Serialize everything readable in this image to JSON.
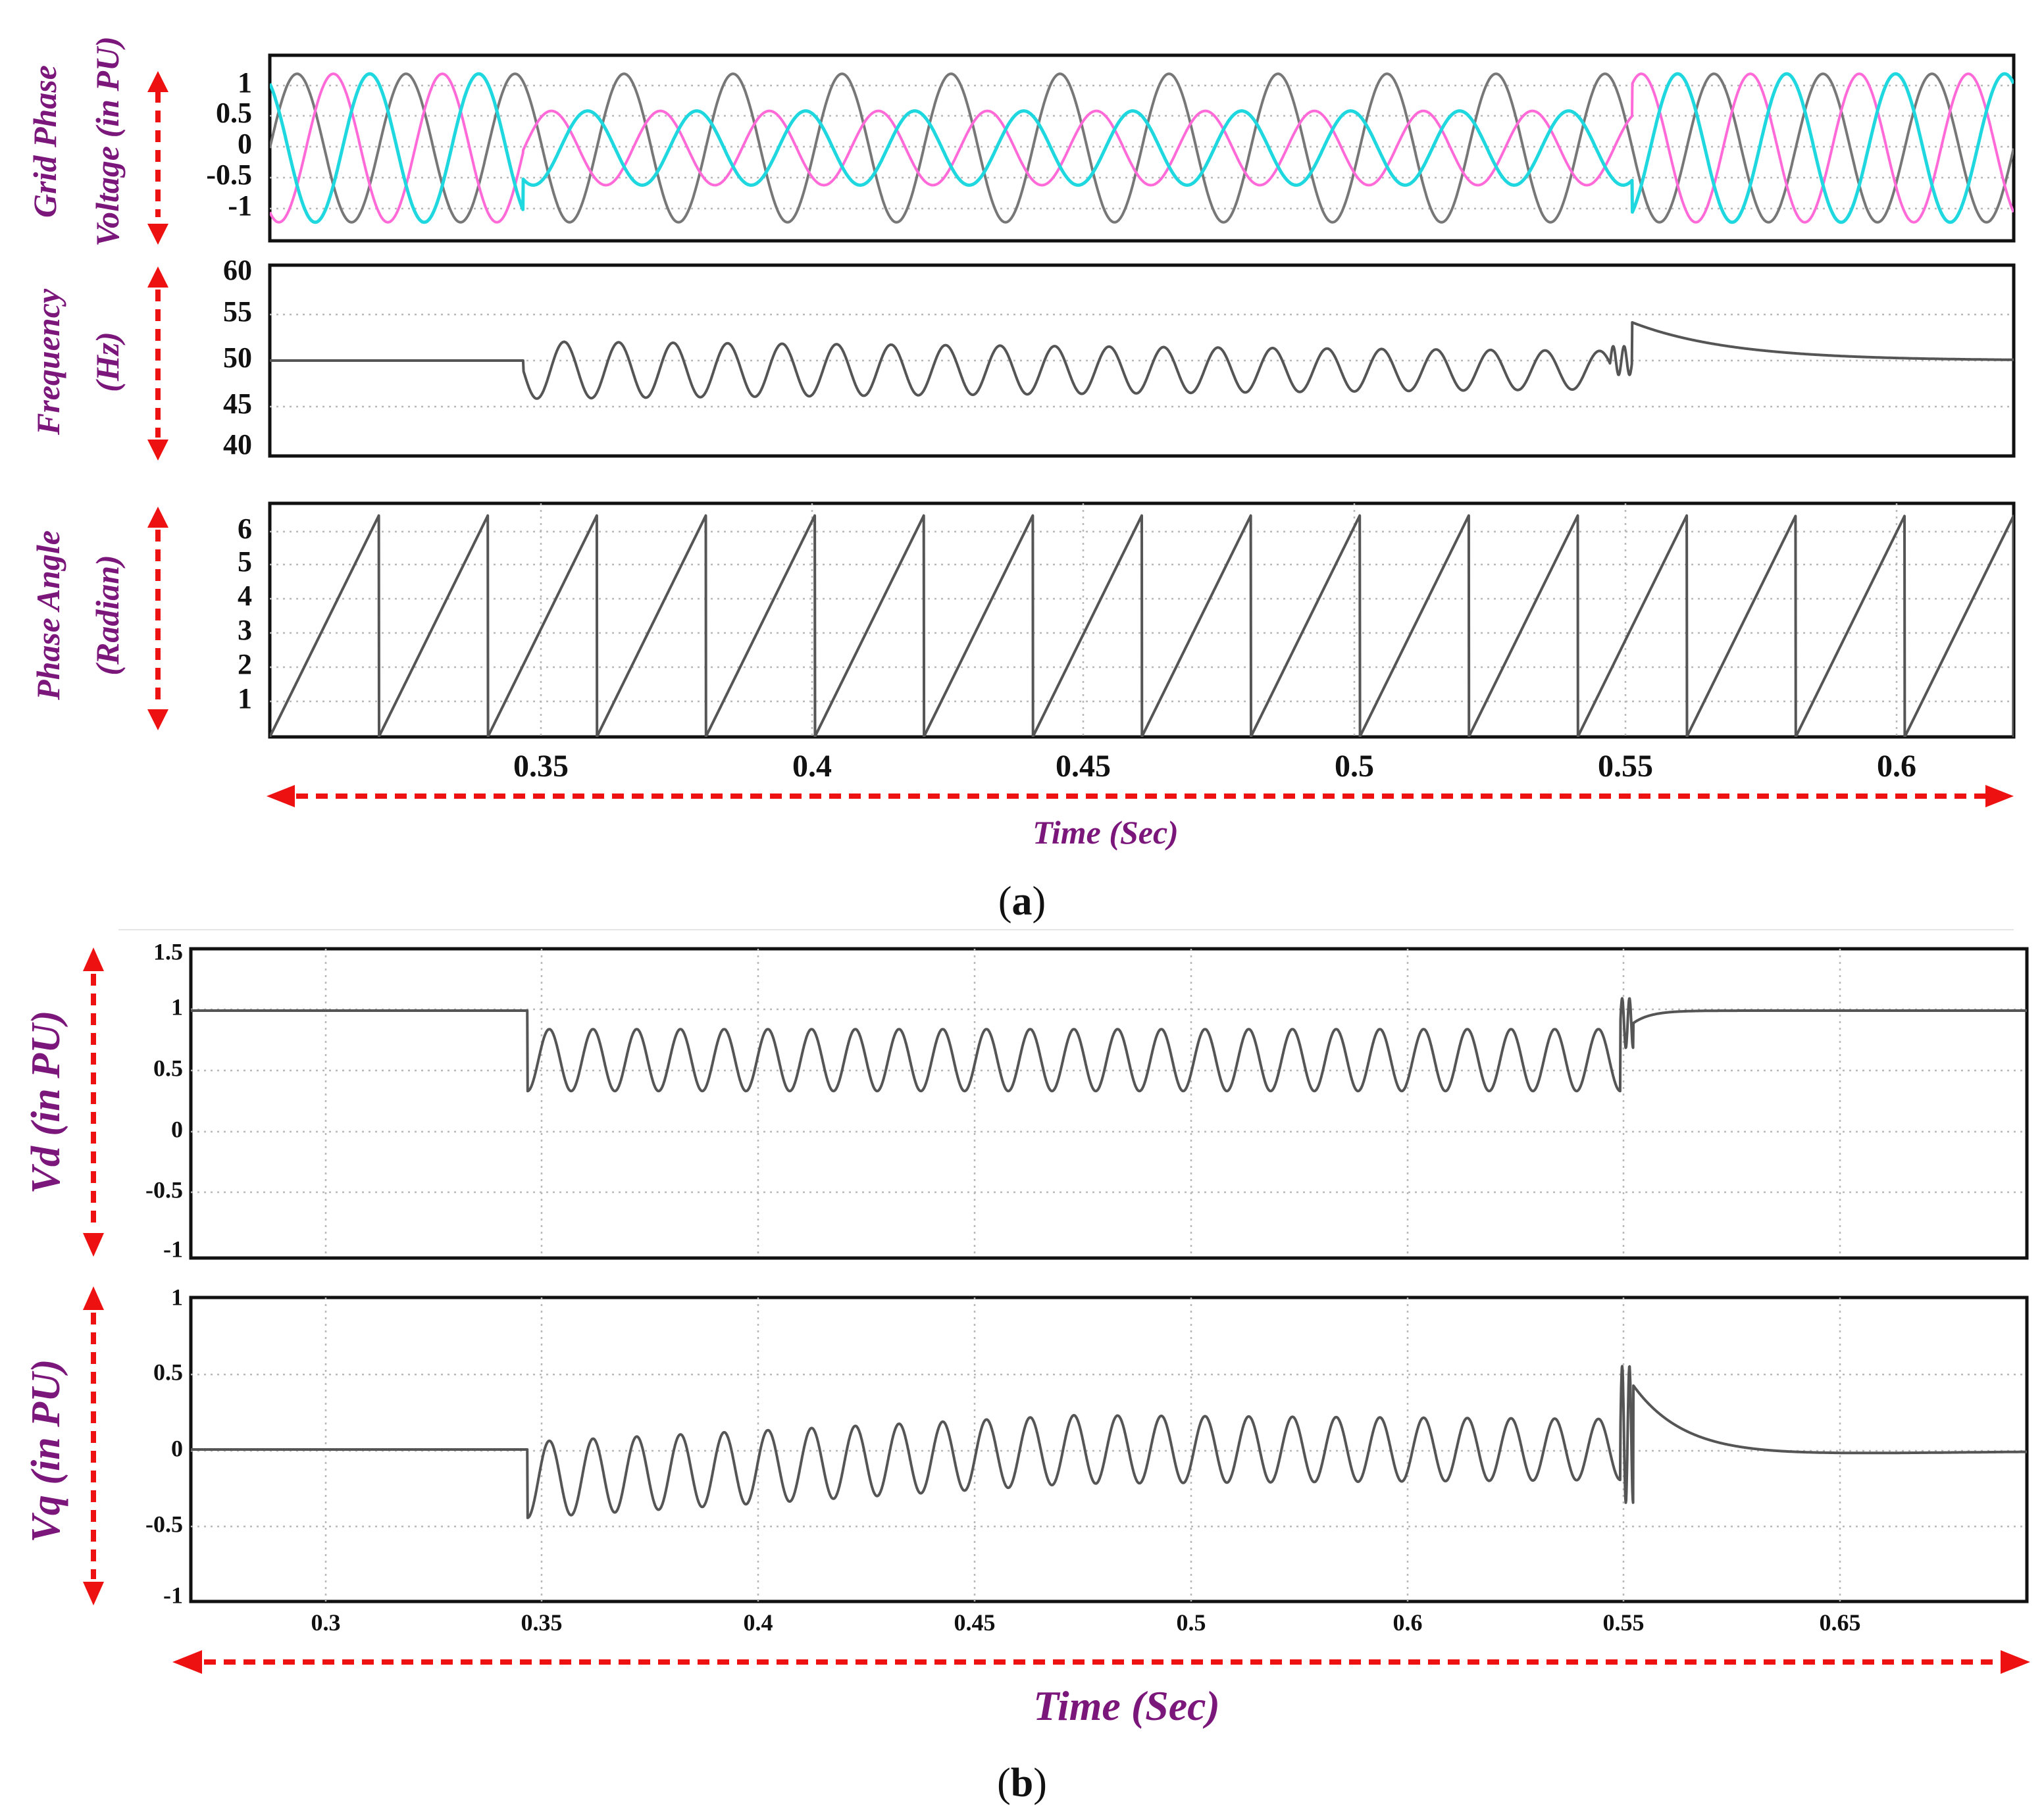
{
  "colors": {
    "phase_a": "#777777",
    "phase_b": "#ff6ad8",
    "phase_c": "#1fd8df",
    "trace": "#555555",
    "label_purple": "#7b177b",
    "arrow_red": "#ee1111"
  },
  "panel_a": {
    "caption_open": "(",
    "caption_letter": "a",
    "caption_close": ")",
    "x_label": "Time (Sec)",
    "x_ticks": [
      "0.35",
      "0.4",
      "0.45",
      "0.5",
      "0.55",
      "0.6"
    ],
    "voltage": {
      "ylabel_line1": "Grid Phase",
      "ylabel_line2": "Voltage (in PU)",
      "y_ticks": [
        "1",
        "0.5",
        "0",
        "-0.5",
        "-1"
      ]
    },
    "frequency": {
      "ylabel_line1": "Frequency",
      "ylabel_line2": "(Hz)",
      "y_ticks": [
        "60",
        "55",
        "50",
        "45",
        "40"
      ]
    },
    "phase_angle": {
      "ylabel_line1": "Phase Angle",
      "ylabel_line2": "(Radian)",
      "y_ticks": [
        "6",
        "5",
        "4",
        "3",
        "2",
        "1"
      ]
    }
  },
  "panel_b": {
    "caption_open": "(",
    "caption_letter": "b",
    "caption_close": ")",
    "x_label": "Time (Sec)",
    "x_ticks": [
      "0.3",
      "0.35",
      "0.4",
      "0.45",
      "0.5",
      "0.6",
      "0.55",
      "0.65"
    ],
    "vd": {
      "ylabel": "Vd (in PU)",
      "y_ticks": [
        "1.5",
        "1",
        "0.5",
        "0",
        "-0.5",
        "-1"
      ]
    },
    "vq": {
      "ylabel": "Vq (in PU)",
      "y_ticks": [
        "1",
        "0.5",
        "0",
        "-0.5",
        "-1"
      ]
    }
  },
  "chart_data": [
    {
      "type": "line",
      "xlim": [
        0.3,
        0.62
      ],
      "ylim": [
        -1.25,
        1.25
      ],
      "grid": true,
      "x_ticks": [
        0.35,
        0.4,
        0.45,
        0.5,
        0.55,
        0.6
      ],
      "y_ticks": [
        1,
        0.5,
        0,
        -0.5,
        -1
      ],
      "xlabel": "Time (Sec)",
      "ylabel": "Grid Phase Voltage (in PU)",
      "fundamental_hz": 50,
      "events": {
        "sag_start_s": 0.3465,
        "sag_end_s": 0.546,
        "recovery_s": 0.55
      },
      "series": [
        {
          "color_key": "phase_a",
          "amplitude": [
            1,
            1,
            1
          ],
          "phase_deg": 0
        },
        {
          "color_key": "phase_b",
          "amplitude": [
            1,
            0.5,
            1
          ],
          "phase_deg": -120
        },
        {
          "color_key": "phase_c",
          "amplitude": [
            1,
            0.5,
            1
          ],
          "phase_deg": 120
        }
      ]
    },
    {
      "type": "line",
      "xlim": [
        0.3,
        0.62
      ],
      "ylim": [
        40,
        60
      ],
      "grid": true,
      "x_ticks": [
        0.35,
        0.4,
        0.45,
        0.5,
        0.55,
        0.6
      ],
      "y_ticks": [
        60,
        55,
        50,
        45,
        40
      ],
      "xlabel": "Time (Sec)",
      "ylabel": "Frequency (Hz)",
      "steady_value": 50,
      "sag_oscillation": {
        "center": 49,
        "amplitude_start": 3,
        "amplitude_end": 2,
        "freq_hz": 100
      },
      "post_recovery": {
        "peak": 54,
        "settle_to": 50,
        "tau_s": 0.018
      }
    },
    {
      "type": "line",
      "xlim": [
        0.3,
        0.62
      ],
      "ylim": [
        0.5,
        6.6
      ],
      "grid": true,
      "x_ticks": [
        0.35,
        0.4,
        0.45,
        0.5,
        0.55,
        0.6
      ],
      "y_ticks": [
        6,
        5,
        4,
        3,
        2,
        1
      ],
      "xlabel": "Time (Sec)",
      "ylabel": "Phase Angle (Radian)",
      "sawtooth": {
        "min": 0.5,
        "max": 6.28,
        "period_s": 0.02,
        "reset_times_s": [
          0.32,
          0.34,
          0.36,
          0.38,
          0.4,
          0.42,
          0.44,
          0.46,
          0.48,
          0.5,
          0.52,
          0.54,
          0.56,
          0.58,
          0.6
        ]
      }
    },
    {
      "type": "line",
      "xlim": [
        0.27,
        0.69
      ],
      "ylim": [
        -1,
        1.5
      ],
      "grid": true,
      "x_tick_positions": [
        0.3,
        0.35,
        0.4,
        0.45,
        0.5,
        0.55,
        0.6,
        0.65
      ],
      "y_ticks": [
        1.5,
        1,
        0.5,
        0,
        -0.5,
        -1
      ],
      "xlabel": "Time (Sec)",
      "ylabel": "Vd (in PU)",
      "steady_value": 1,
      "sag_oscillation": {
        "start_s": 0.347,
        "end_s": 0.597,
        "center": 0.6,
        "amplitude": 0.25,
        "freq_hz": 100
      },
      "recovery": {
        "start_s": 0.6,
        "from": 0.9,
        "settle_to": 1.0,
        "tau_s": 0.004
      }
    },
    {
      "type": "line",
      "xlim": [
        0.27,
        0.69
      ],
      "ylim": [
        -1,
        1
      ],
      "grid": true,
      "x_tick_positions": [
        0.3,
        0.35,
        0.4,
        0.45,
        0.5,
        0.55,
        0.6,
        0.65
      ],
      "y_ticks": [
        1,
        0.5,
        0,
        -0.5,
        -1
      ],
      "xlabel": "Time (Sec)",
      "ylabel": "Vq (in PU)",
      "steady_value": 0,
      "sag_oscillation": {
        "start_s": 0.347,
        "end_s": 0.597,
        "center_start": -0.2,
        "center_end": 0,
        "amplitude_start": 0.25,
        "amplitude_end": 0.2,
        "freq_hz": 100
      },
      "recovery": {
        "start_s": 0.6,
        "peak": 0.42,
        "undershoot": -0.07,
        "settle_to": 0
      }
    }
  ]
}
